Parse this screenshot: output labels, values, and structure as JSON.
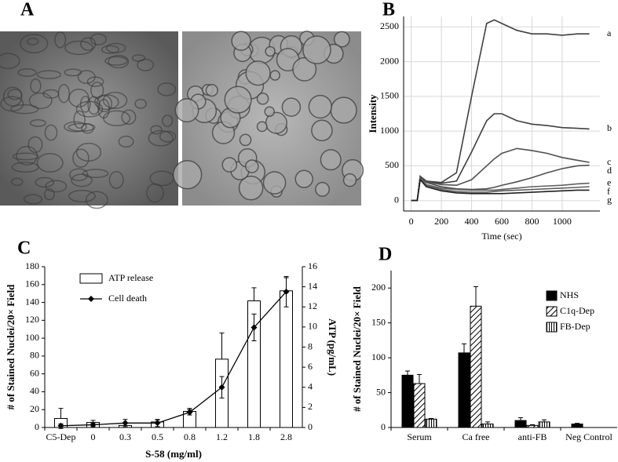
{
  "panel_labels": [
    "A",
    "B",
    "C",
    "D"
  ],
  "chart_data": [
    {
      "type": "line",
      "xlabel": "Time (sec)",
      "ylabel": "Intensity",
      "x": [
        0,
        40,
        60,
        100,
        200,
        300,
        400,
        500,
        550,
        600,
        700,
        800,
        900,
        1000,
        1100,
        1180
      ],
      "xlim": [
        -50,
        1250
      ],
      "xticks": [
        0,
        200,
        400,
        600,
        800,
        1000
      ],
      "ylim": [
        -150,
        2650
      ],
      "yticks": [
        0,
        500,
        1000,
        1500,
        2000,
        2500
      ],
      "grid": true,
      "series": [
        {
          "name": "a",
          "color": "#404040",
          "values": [
            0,
            0,
            350,
            280,
            260,
            400,
            1500,
            2550,
            2600,
            2550,
            2450,
            2400,
            2400,
            2380,
            2400,
            2400
          ]
        },
        {
          "name": "b",
          "color": "#404040",
          "values": [
            0,
            0,
            350,
            280,
            250,
            280,
            700,
            1150,
            1250,
            1250,
            1150,
            1100,
            1080,
            1050,
            1040,
            1030
          ]
        },
        {
          "name": "c",
          "color": "#505050",
          "values": [
            0,
            0,
            350,
            270,
            230,
            220,
            300,
            500,
            600,
            680,
            750,
            720,
            680,
            620,
            580,
            550
          ]
        },
        {
          "name": "d",
          "color": "#505050",
          "values": [
            0,
            0,
            330,
            260,
            200,
            170,
            160,
            170,
            190,
            220,
            270,
            330,
            400,
            460,
            500,
            510
          ]
        },
        {
          "name": "e",
          "color": "#606060",
          "values": [
            0,
            0,
            320,
            230,
            180,
            160,
            150,
            150,
            150,
            160,
            180,
            200,
            210,
            220,
            240,
            250
          ]
        },
        {
          "name": "f",
          "color": "#606060",
          "values": [
            0,
            0,
            310,
            220,
            160,
            130,
            120,
            120,
            130,
            140,
            150,
            160,
            170,
            180,
            190,
            200
          ]
        },
        {
          "name": "g",
          "color": "#202020",
          "values": [
            0,
            0,
            300,
            200,
            140,
            110,
            100,
            100,
            100,
            100,
            110,
            120,
            130,
            140,
            150,
            150
          ]
        }
      ]
    },
    {
      "type": "bar",
      "xlabel": "S-58 (mg/ml)",
      "ylabel": "# of Stained Nuclei/20× Field",
      "y2label": "ATP (pg/mL)",
      "categories": [
        "C5-Dep",
        "0",
        "0.3",
        "0.5",
        "0.8",
        "1.2",
        "1.8",
        "2.8"
      ],
      "ylim": [
        0,
        180
      ],
      "yticks": [
        0,
        20,
        40,
        60,
        80,
        100,
        120,
        140,
        160,
        180
      ],
      "y2lim": [
        0,
        16
      ],
      "y2ticks": [
        0,
        2,
        4,
        6,
        8,
        10,
        12,
        14,
        16
      ],
      "legend": "upper left",
      "series": [
        {
          "name": "ATP release",
          "type": "bar",
          "axis": "y2",
          "color": "#ffffff",
          "values": [
            0.9,
            0.5,
            0.2,
            0.55,
            1.6,
            6.8,
            12.6,
            13.6
          ],
          "errors": [
            1.0,
            0.2,
            0.2,
            0.2,
            0.3,
            2.6,
            1.3,
            1.3
          ]
        },
        {
          "name": "Cell death",
          "type": "line",
          "color": "#000000",
          "values": [
            2,
            3,
            5,
            5,
            17,
            45,
            112,
            152
          ],
          "errors": [
            2,
            2,
            4,
            4,
            3,
            12,
            15,
            17
          ]
        }
      ]
    },
    {
      "type": "bar",
      "ylabel": "# of Stained Nuclei/20× Field",
      "categories": [
        "Serum",
        "Ca free",
        "anti-FB",
        "Neg Control"
      ],
      "ylim": [
        0,
        225
      ],
      "yticks": [
        0,
        50,
        100,
        150,
        200
      ],
      "legend": "upper right",
      "series": [
        {
          "name": "NHS",
          "type": "bar",
          "color": "#000000",
          "values": [
            75,
            107,
            10,
            5
          ],
          "errors": [
            6,
            13,
            4,
            1
          ]
        },
        {
          "name": "C1q-Dep",
          "type": "bar",
          "color": "#000000",
          "hatch": "diagonal",
          "values": [
            63,
            174,
            3,
            null
          ],
          "errors": [
            13,
            28,
            1,
            null
          ]
        },
        {
          "name": "FB-Dep",
          "type": "bar",
          "color": "#000000",
          "hatch": "vertical",
          "values": [
            12,
            5,
            8,
            null
          ],
          "errors": [
            1,
            3,
            3,
            null
          ]
        }
      ]
    }
  ]
}
